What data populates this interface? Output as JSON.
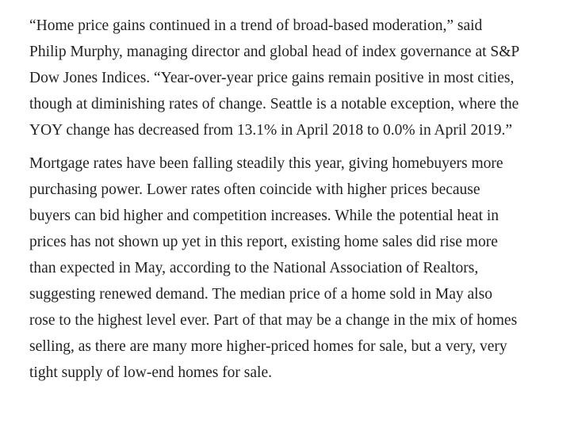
{
  "article": {
    "paragraphs": [
      {
        "lines": [
          "“Home price gains continued in a trend of broad-based moderation,” said",
          "Philip Murphy, managing director and global head of index governance at S&P",
          "Dow Jones Indices. “Year-over-year price gains remain positive in most cities,",
          "though at diminishing rates of change. Seattle is a notable exception, where the",
          "YOY change has decreased from 13.1% in April 2018 to 0.0% in April 2019.”"
        ]
      },
      {
        "lines": [
          "Mortgage rates have been falling steadily this year, giving homebuyers more",
          "purchasing power. Lower rates often coincide with higher prices because",
          "buyers can bid higher and competition increases. While the potential heat in",
          "prices has not shown up yet in this report, existing home sales did rise more",
          "than expected in May, according to the National Association of Realtors,",
          "suggesting renewed demand. The median price of a home sold in May also",
          "rose to the highest level ever. Part of that may be a change in the mix of homes",
          "selling, as there are many more higher-priced homes for sale, but a very, very",
          "tight supply of low-end homes for sale."
        ]
      }
    ]
  }
}
